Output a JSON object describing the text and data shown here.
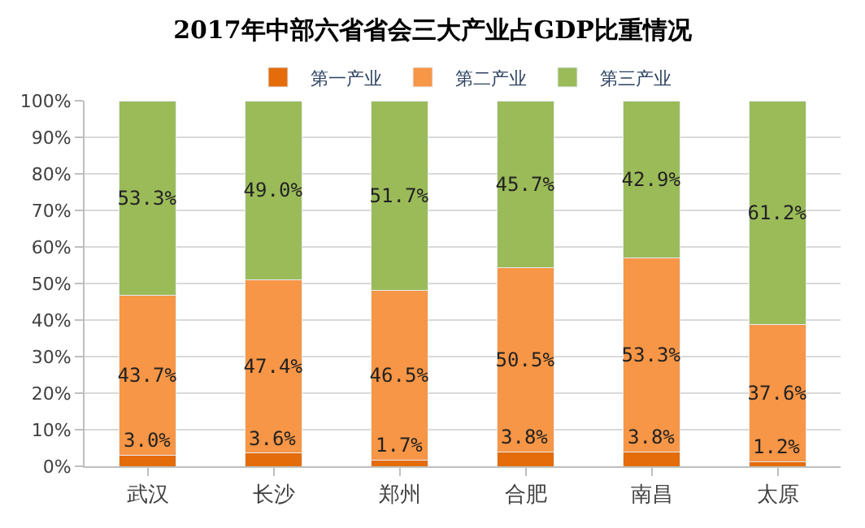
{
  "chart_data": {
    "type": "bar",
    "stacked": true,
    "title": "2017年中部六省省会三大产业占GDP比重情况",
    "categories": [
      "武汉",
      "长沙",
      "郑州",
      "合肥",
      "南昌",
      "太原"
    ],
    "series": [
      {
        "name": "第一产业",
        "color": "#e46c0a",
        "values": [
          3.0,
          3.6,
          1.7,
          3.8,
          3.8,
          1.2
        ],
        "value_labels": [
          "3.0%",
          "3.6%",
          "1.7%",
          "3.8%",
          "3.8%",
          "1.2%"
        ]
      },
      {
        "name": "第二产业",
        "color": "#f79646",
        "values": [
          43.7,
          47.4,
          46.5,
          50.5,
          53.3,
          37.6
        ],
        "value_labels": [
          "43.7%",
          "47.4%",
          "46.5%",
          "50.5%",
          "53.3%",
          "37.6%"
        ]
      },
      {
        "name": "第三产业",
        "color": "#9bbb59",
        "values": [
          53.3,
          49.0,
          51.7,
          45.7,
          42.9,
          61.2
        ],
        "value_labels": [
          "53.3%",
          "49.0%",
          "51.7%",
          "45.7%",
          "42.9%",
          "61.2%"
        ]
      }
    ],
    "ylim": [
      0,
      100
    ],
    "yticks": [
      {
        "value": 0,
        "label": "0%"
      },
      {
        "value": 10,
        "label": "10%"
      },
      {
        "value": 20,
        "label": "20%"
      },
      {
        "value": 30,
        "label": "30%"
      },
      {
        "value": 40,
        "label": "40%"
      },
      {
        "value": 50,
        "label": "50%"
      },
      {
        "value": 60,
        "label": "60%"
      },
      {
        "value": 70,
        "label": "70%"
      },
      {
        "value": 80,
        "label": "80%"
      },
      {
        "value": 90,
        "label": "90%"
      },
      {
        "value": 100,
        "label": "100%"
      }
    ],
    "grid": "y",
    "legend": "top"
  }
}
